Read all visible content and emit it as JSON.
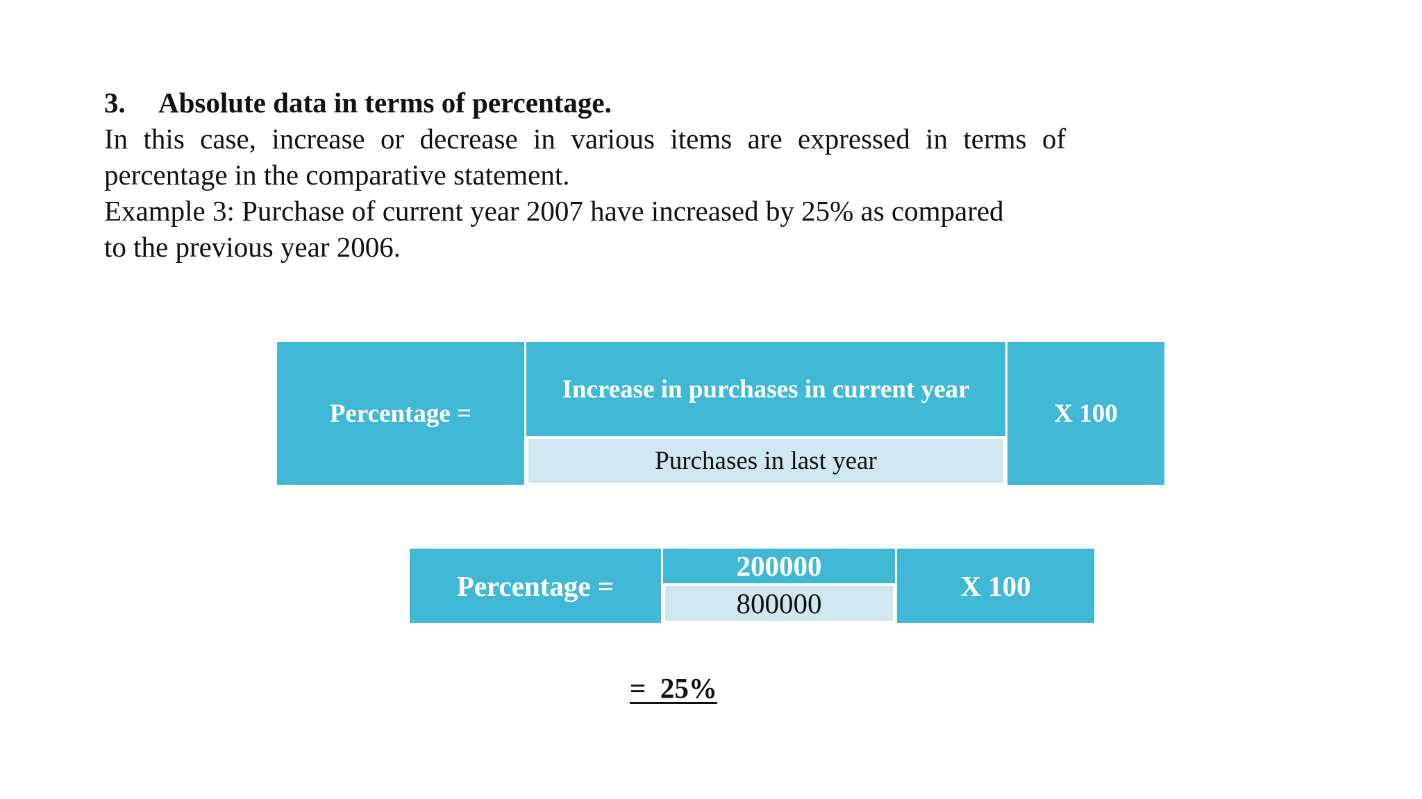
{
  "section": {
    "number": "3.",
    "title": "Absolute data in terms of percentage.",
    "paragraph_1": "In this case, increase or decrease in various items are expressed in terms of percentage in the comparative statement.",
    "paragraph_2_line_1": "Example 3: Purchase of current year 2007 have increased by 25% as compared",
    "paragraph_2_line_2": "to the previous year 2006."
  },
  "formula_1": {
    "left_label": "Percentage =",
    "numerator": "Increase in purchases in current year",
    "denominator": "Purchases in last year",
    "multiplier": "X 100"
  },
  "formula_2": {
    "left_label": "Percentage =",
    "numerator": "200000",
    "denominator": "800000",
    "multiplier": "X 100"
  },
  "result": "=  25%",
  "colors": {
    "cell_blue": "#41b8d5",
    "denominator_light": "#cfe8ef"
  }
}
